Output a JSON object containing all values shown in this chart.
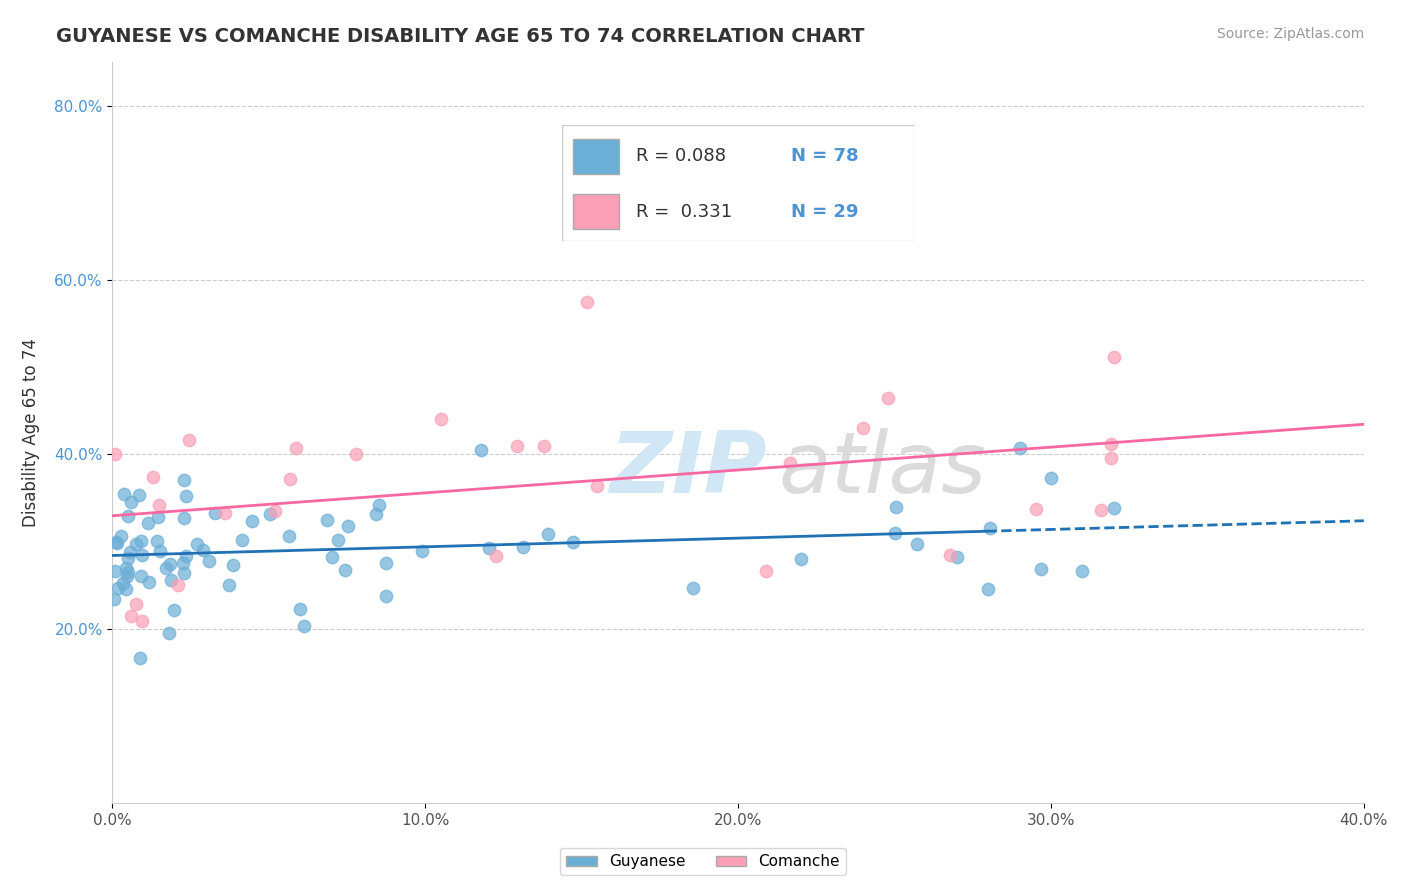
{
  "title": "GUYANESE VS COMANCHE DISABILITY AGE 65 TO 74 CORRELATION CHART",
  "source_text": "Source: ZipAtlas.com",
  "xlabel": "",
  "ylabel": "Disability Age 65 to 74",
  "xlim": [
    0.0,
    0.4
  ],
  "ylim": [
    0.0,
    0.85
  ],
  "xtick_labels": [
    "0.0%",
    "10.0%",
    "20.0%",
    "30.0%",
    "40.0%"
  ],
  "xtick_vals": [
    0.0,
    0.1,
    0.2,
    0.3,
    0.4
  ],
  "ytick_labels": [
    "20.0%",
    "40.0%",
    "60.0%",
    "80.0%"
  ],
  "ytick_vals": [
    0.2,
    0.4,
    0.6,
    0.8
  ],
  "guyanese_color": "#6baed6",
  "comanche_color": "#fa9fb5",
  "guyanese_line_color": "#2171b5",
  "comanche_line_color": "#f768a1",
  "R_guyanese": 0.088,
  "N_guyanese": 78,
  "R_comanche": 0.331,
  "N_comanche": 29
}
